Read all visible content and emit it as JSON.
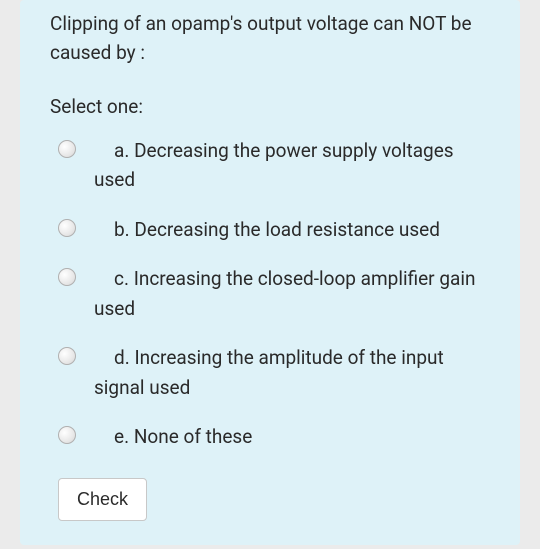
{
  "card": {
    "background_color": "#def2f8",
    "page_background_color": "#ebebeb"
  },
  "question": {
    "text": "Clipping of an opamp's output voltage can NOT be caused by :",
    "select_prompt": "Select one:"
  },
  "options": [
    {
      "letter": "a.",
      "text": "Decreasing the power supply voltages used",
      "selected": false
    },
    {
      "letter": "b.",
      "text": "Decreasing the load resistance used",
      "selected": false
    },
    {
      "letter": "c.",
      "text": "Increasing the closed-loop amplifier gain used",
      "selected": false
    },
    {
      "letter": "d.",
      "text": "Increasing the amplitude of the input signal used",
      "selected": false
    },
    {
      "letter": "e.",
      "text": "None of these",
      "selected": false
    }
  ],
  "actions": {
    "check_label": "Check"
  }
}
